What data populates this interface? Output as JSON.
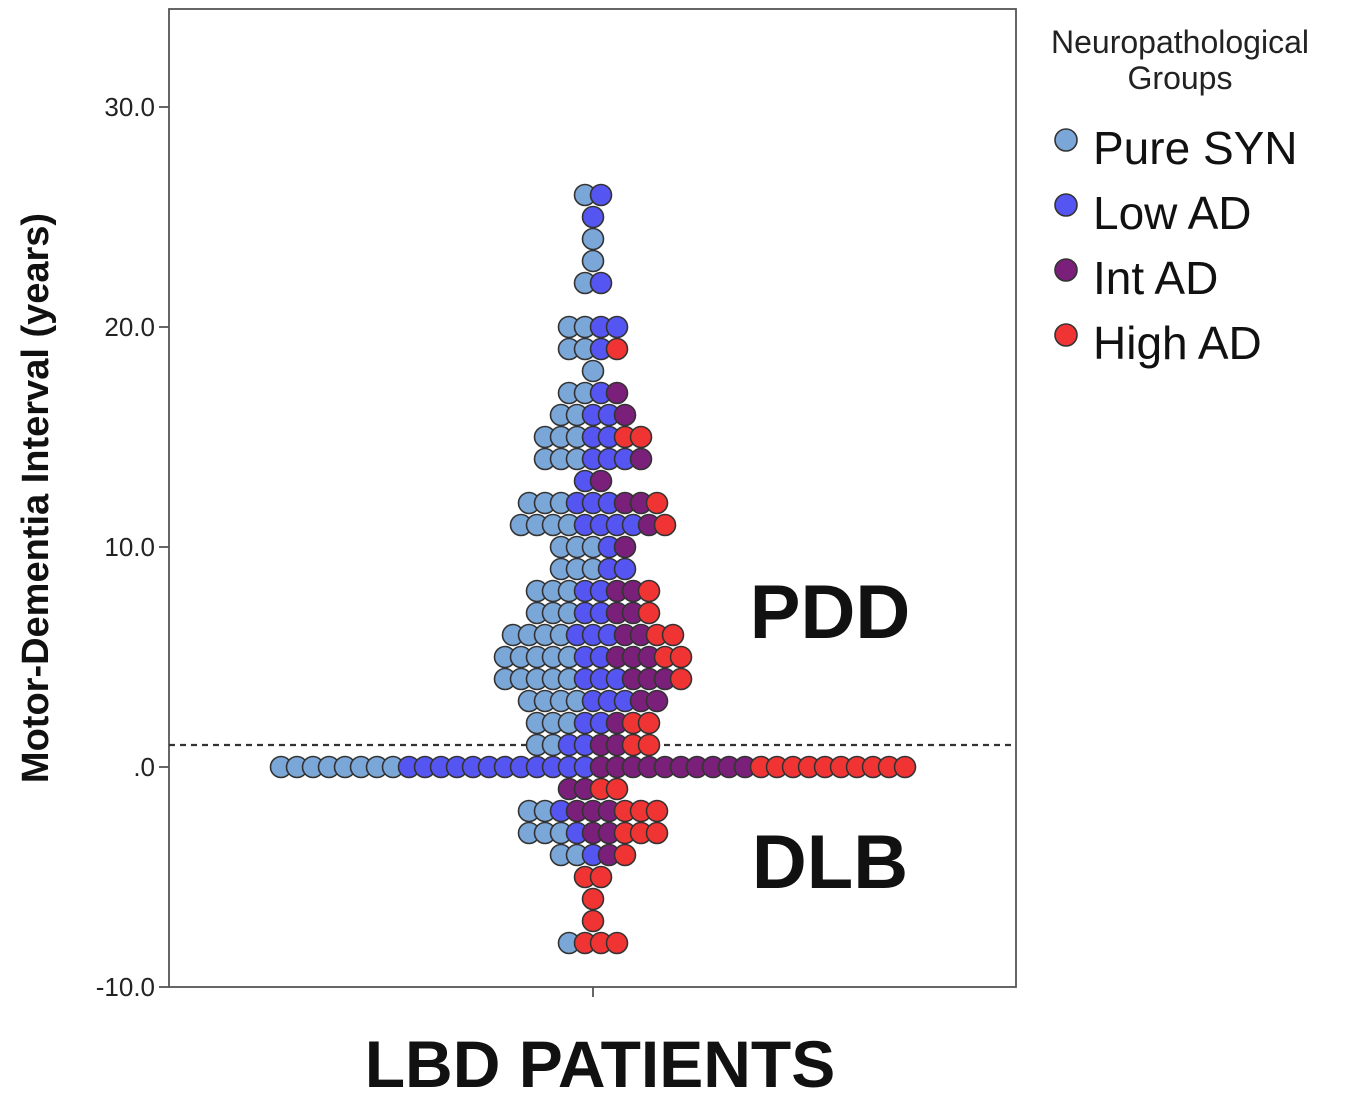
{
  "chart_data": {
    "type": "scatter",
    "subtype": "dot-plot",
    "xlabel": "LBD PATIENTS",
    "ylabel": "Motor-Dementia Interval (years)",
    "ylim": [
      -10,
      34.5
    ],
    "yticks": [
      {
        "value": 30,
        "label": "30.0"
      },
      {
        "value": 20,
        "label": "20.0"
      },
      {
        "value": 10,
        "label": "10.0"
      },
      {
        "value": 0,
        "label": ".0"
      },
      {
        "value": -10,
        "label": "-10.0"
      }
    ],
    "reference_line": {
      "y": 1,
      "style": "dashed"
    },
    "annotations": [
      {
        "text": "PDD",
        "y": 7.5
      },
      {
        "text": "DLB",
        "y": -4
      },
      {
        "text": "",
        "y": 0
      }
    ],
    "legend": {
      "title_lines": [
        "Neuropathological",
        "Groups"
      ],
      "position": "right"
    },
    "series": [
      {
        "name": "Pure SYN",
        "color": "#7ba7d8",
        "counts": {
          "26": 1,
          "24": 1,
          "23": 1,
          "22": 1,
          "20": 2,
          "19": 2,
          "18": 1,
          "17": 2,
          "16": 2,
          "15": 3,
          "14": 3,
          "12": 3,
          "11": 4,
          "10": 3,
          "9": 3,
          "8": 3,
          "7": 3,
          "6": 4,
          "5": 5,
          "4": 5,
          "3": 4,
          "2": 3,
          "1": 2,
          "0": 8,
          "-2": 2,
          "-3": 3,
          "-4": 2,
          "-8": 1
        }
      },
      {
        "name": "Low AD",
        "color": "#5555f2",
        "counts": {
          "26": 1,
          "25": 1,
          "22": 1,
          "20": 2,
          "19": 1,
          "17": 1,
          "16": 2,
          "15": 2,
          "14": 3,
          "13": 1,
          "12": 3,
          "11": 4,
          "10": 1,
          "9": 2,
          "8": 2,
          "7": 2,
          "6": 3,
          "5": 2,
          "4": 3,
          "3": 3,
          "2": 2,
          "1": 2,
          "0": 12,
          "-2": 1,
          "-3": 1,
          "-4": 1
        }
      },
      {
        "name": "Int AD",
        "color": "#7a1f7a",
        "counts": {
          "17": 1,
          "16": 1,
          "14": 1,
          "13": 1,
          "12": 2,
          "11": 1,
          "10": 1,
          "8": 2,
          "7": 2,
          "6": 2,
          "5": 3,
          "4": 3,
          "3": 2,
          "2": 1,
          "1": 2,
          "0": 10,
          "-1": 2,
          "-2": 3,
          "-3": 2,
          "-4": 1
        }
      },
      {
        "name": "High AD",
        "color": "#f03434",
        "counts": {
          "19": 1,
          "15": 2,
          "12": 1,
          "11": 1,
          "8": 1,
          "7": 1,
          "6": 2,
          "5": 2,
          "4": 1,
          "2": 2,
          "1": 2,
          "0": 10,
          "-1": 2,
          "-2": 3,
          "-3": 3,
          "-4": 1,
          "-5": 2,
          "-6": 1,
          "-7": 1,
          "-8": 3
        }
      }
    ]
  }
}
